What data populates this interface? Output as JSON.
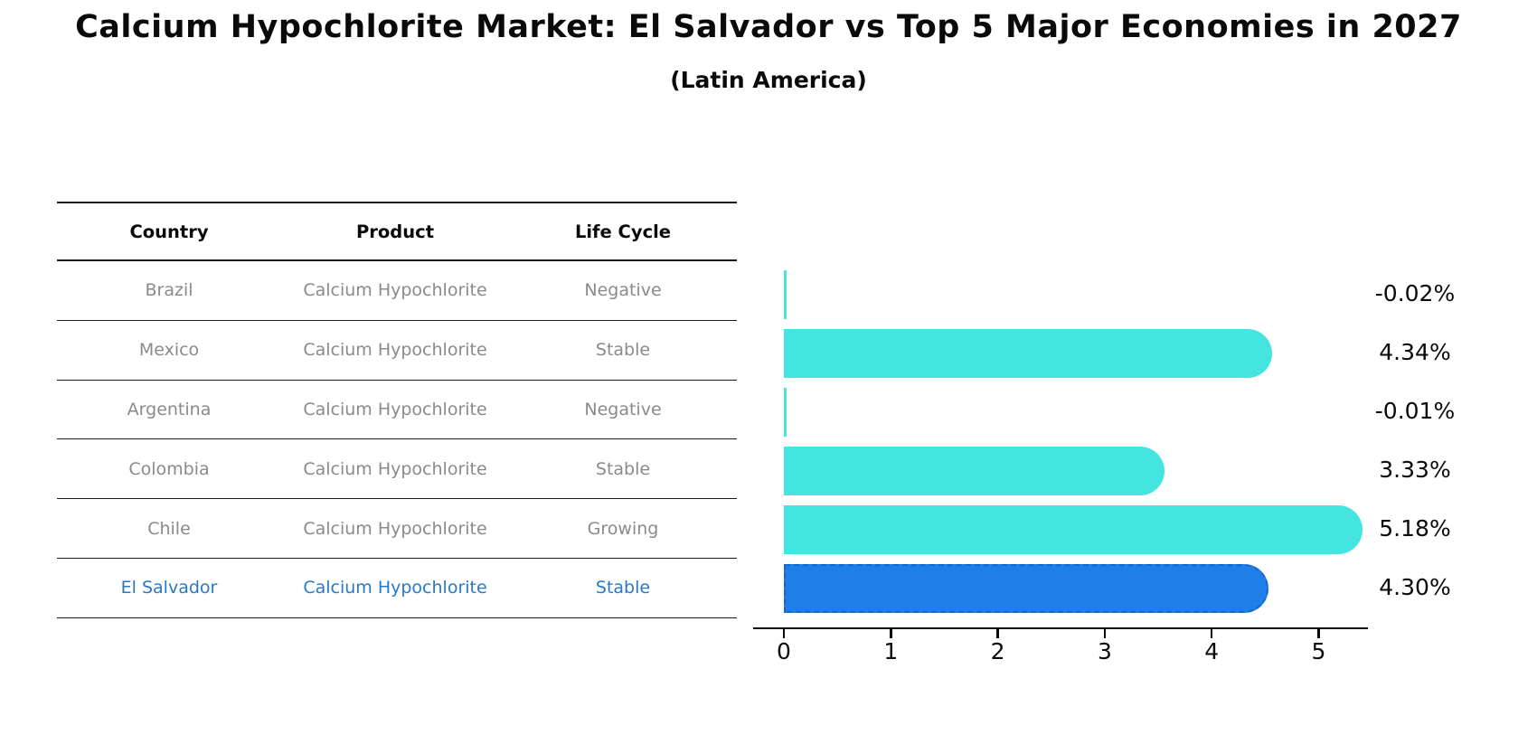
{
  "header": {
    "title": "Calcium Hypochlorite Market: El Salvador vs Top 5 Major Economies in 2027",
    "subtitle": "(Latin America)"
  },
  "table": {
    "columns": [
      "Country",
      "Product",
      "Life Cycle"
    ],
    "rows": [
      {
        "country": "Brazil",
        "product": "Calcium Hypochlorite",
        "life_cycle": "Negative",
        "highlight": false
      },
      {
        "country": "Mexico",
        "product": "Calcium Hypochlorite",
        "life_cycle": "Stable",
        "highlight": false
      },
      {
        "country": "Argentina",
        "product": "Calcium Hypochlorite",
        "life_cycle": "Negative",
        "highlight": false
      },
      {
        "country": "Colombia",
        "product": "Calcium Hypochlorite",
        "life_cycle": "Stable",
        "highlight": false
      },
      {
        "country": "Chile",
        "product": "Calcium Hypochlorite",
        "life_cycle": "Growing",
        "highlight": false
      },
      {
        "country": "El Salvador",
        "product": "Calcium Hypochlorite",
        "life_cycle": "Stable",
        "highlight": true
      }
    ]
  },
  "chart_data": {
    "type": "bar",
    "orientation": "horizontal",
    "title": "Calcium Hypochlorite Market: El Salvador vs Top 5 Major Economies in 2027",
    "subtitle": "(Latin America)",
    "categories": [
      "Brazil",
      "Mexico",
      "Argentina",
      "Colombia",
      "Chile",
      "El Salvador"
    ],
    "values": [
      -0.02,
      4.34,
      -0.01,
      3.33,
      5.18,
      4.3
    ],
    "value_labels": [
      "-0.02%",
      "4.34%",
      "-0.01%",
      "3.33%",
      "5.18%",
      "4.30%"
    ],
    "highlight_category": "El Salvador",
    "x_ticks": [
      "0",
      "1",
      "2",
      "3",
      "4",
      "5"
    ],
    "xlim": [
      -0.25,
      5.5
    ],
    "grid": false,
    "legend": false
  },
  "colors": {
    "bar": "#44E5E0",
    "highlight_bar": "#1E7FE8",
    "highlight_border": "#1565D0",
    "highlight_text": "#2878C8",
    "row_text": "#8A8A8A",
    "axis": "#0A0A0A"
  }
}
